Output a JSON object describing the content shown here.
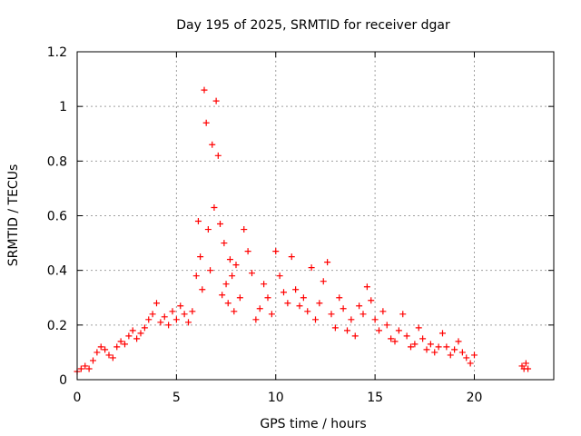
{
  "chart_data": {
    "type": "scatter",
    "title": "Day 195 of 2025, SRMTID for receiver dgar",
    "xlabel": "GPS time / hours",
    "ylabel": "SRMTID / TECUs",
    "xlim": [
      0,
      24
    ],
    "ylim": [
      0,
      1.2
    ],
    "x_ticks": [
      0,
      5,
      10,
      15,
      20
    ],
    "x_tick_labels": [
      "0",
      "5",
      "10",
      "15",
      "20"
    ],
    "y_ticks": [
      0,
      0.2,
      0.4,
      0.6,
      0.8,
      1.0,
      1.2
    ],
    "y_tick_labels": [
      "0",
      "0.2",
      "0.4",
      "0.6",
      "0.8",
      "1",
      "1.2"
    ],
    "grid": true,
    "marker": "+",
    "color": "#ff0000",
    "series": [
      {
        "name": "SRMTID",
        "x": [
          0.0,
          0.2,
          0.4,
          0.6,
          0.8,
          1.0,
          1.2,
          1.4,
          1.6,
          1.8,
          2.0,
          2.2,
          2.4,
          2.6,
          2.8,
          3.0,
          3.2,
          3.4,
          3.6,
          3.8,
          4.0,
          4.2,
          4.4,
          4.6,
          4.8,
          5.0,
          5.2,
          5.4,
          5.6,
          5.8,
          6.0,
          6.1,
          6.2,
          6.3,
          6.4,
          6.5,
          6.6,
          6.7,
          6.8,
          6.9,
          7.0,
          7.1,
          7.2,
          7.3,
          7.4,
          7.5,
          7.6,
          7.7,
          7.8,
          7.9,
          8.0,
          8.2,
          8.4,
          8.6,
          8.8,
          9.0,
          9.2,
          9.4,
          9.6,
          9.8,
          10.0,
          10.2,
          10.4,
          10.6,
          10.8,
          11.0,
          11.2,
          11.4,
          11.6,
          11.8,
          12.0,
          12.2,
          12.4,
          12.6,
          12.8,
          13.0,
          13.2,
          13.4,
          13.6,
          13.8,
          14.0,
          14.2,
          14.4,
          14.6,
          14.8,
          15.0,
          15.2,
          15.4,
          15.6,
          15.8,
          16.0,
          16.2,
          16.4,
          16.6,
          16.8,
          17.0,
          17.2,
          17.4,
          17.6,
          17.8,
          18.0,
          18.2,
          18.4,
          18.6,
          18.8,
          19.0,
          19.2,
          19.4,
          19.6,
          19.8,
          20.0,
          22.4,
          22.5,
          22.6,
          22.7
        ],
        "y": [
          0.03,
          0.04,
          0.05,
          0.04,
          0.07,
          0.1,
          0.12,
          0.11,
          0.09,
          0.08,
          0.12,
          0.14,
          0.13,
          0.16,
          0.18,
          0.15,
          0.17,
          0.19,
          0.22,
          0.24,
          0.28,
          0.21,
          0.23,
          0.2,
          0.25,
          0.22,
          0.27,
          0.24,
          0.21,
          0.25,
          0.38,
          0.58,
          0.45,
          0.33,
          1.06,
          0.94,
          0.55,
          0.4,
          0.86,
          0.63,
          1.02,
          0.82,
          0.57,
          0.31,
          0.5,
          0.35,
          0.28,
          0.44,
          0.38,
          0.25,
          0.42,
          0.3,
          0.55,
          0.47,
          0.39,
          0.22,
          0.26,
          0.35,
          0.3,
          0.24,
          0.47,
          0.38,
          0.32,
          0.28,
          0.45,
          0.33,
          0.27,
          0.3,
          0.25,
          0.41,
          0.22,
          0.28,
          0.36,
          0.43,
          0.24,
          0.19,
          0.3,
          0.26,
          0.18,
          0.22,
          0.16,
          0.27,
          0.24,
          0.34,
          0.29,
          0.22,
          0.18,
          0.25,
          0.2,
          0.15,
          0.14,
          0.18,
          0.24,
          0.16,
          0.12,
          0.13,
          0.19,
          0.15,
          0.11,
          0.13,
          0.1,
          0.12,
          0.17,
          0.12,
          0.09,
          0.11,
          0.14,
          0.1,
          0.08,
          0.06,
          0.09,
          0.05,
          0.04,
          0.06,
          0.04
        ]
      }
    ]
  }
}
